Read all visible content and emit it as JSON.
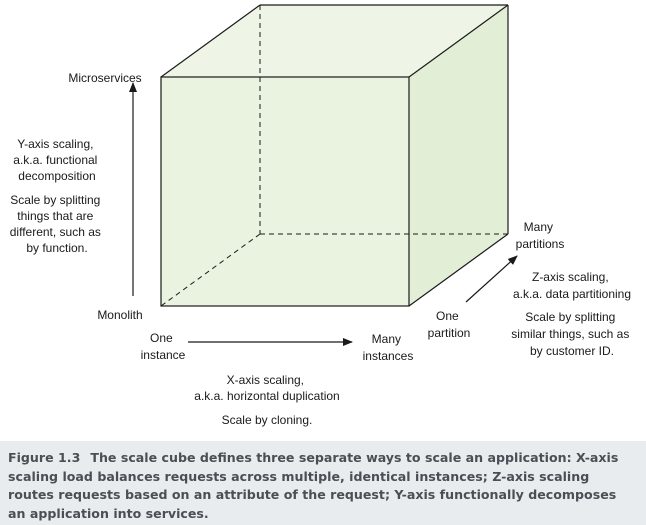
{
  "diagram": {
    "y_axis": {
      "top_label": "Microservices",
      "bottom_label": "Monolith",
      "title_lines": [
        "Y-axis scaling,",
        "a.k.a. functional",
        "decomposition"
      ],
      "desc_lines": [
        "Scale by splitting",
        "things that are",
        "different, such as",
        "by function."
      ]
    },
    "x_axis": {
      "start_lines": [
        "One",
        "instance"
      ],
      "end_lines": [
        "Many",
        "instances"
      ],
      "title_lines": [
        "X-axis scaling,",
        "a.k.a. horizontal duplication"
      ],
      "desc_lines": [
        "Scale by cloning."
      ]
    },
    "z_axis": {
      "start_lines": [
        "One",
        "partition"
      ],
      "end_lines": [
        "Many",
        "partitions"
      ],
      "title_lines": [
        "Z-axis scaling,",
        "a.k.a. data partitioning"
      ],
      "desc_lines": [
        "Scale by splitting",
        "similar things, such as",
        "by customer ID."
      ]
    },
    "colors": {
      "cube_face": "#eaf3e0",
      "cube_edge": "#1a1a1a"
    }
  },
  "caption": {
    "label": "Figure 1.3",
    "text": "The scale cube defines three separate ways to scale an application: X-axis scaling load balances requests across multiple, identical instances; Z-axis scaling routes requests based on an attribute of the request; Y-axis functionally decomposes an application into services."
  }
}
